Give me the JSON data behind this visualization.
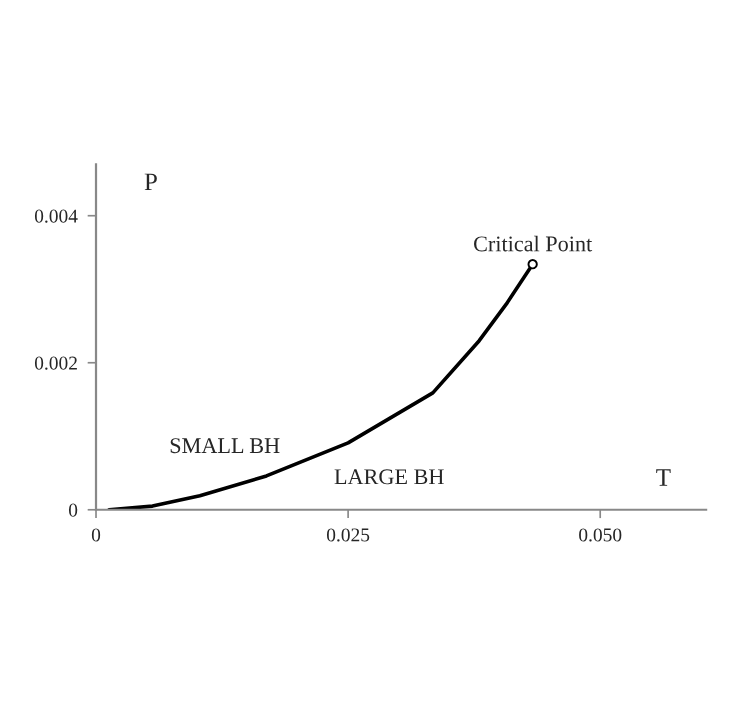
{
  "chart_data": {
    "type": "line",
    "xlabel": "T",
    "ylabel": "P",
    "x": [
      0.0013,
      0.0056,
      0.0103,
      0.0169,
      0.025,
      0.0334,
      0.038,
      0.0407,
      0.0433
    ],
    "values": [
      0,
      5e-05,
      0.00019,
      0.00046,
      0.00091,
      0.00159,
      0.0023,
      0.0028,
      0.00334
    ],
    "color": "#000000",
    "marker": "none",
    "line_style": "solid",
    "grid": false,
    "xlim": [
      0,
      0.0605
    ],
    "ylim": [
      0,
      0.0047
    ],
    "xticks": [
      0,
      0.025,
      {
        "value": 0.05,
        "label": "0.050"
      }
    ],
    "yticks": [
      0,
      0.002,
      0.004
    ],
    "annotations": [
      {
        "text": "Critical Point",
        "x": 0.0433,
        "y": 0.00334
      },
      "SMALL BH",
      "LARGE BH"
    ]
  }
}
